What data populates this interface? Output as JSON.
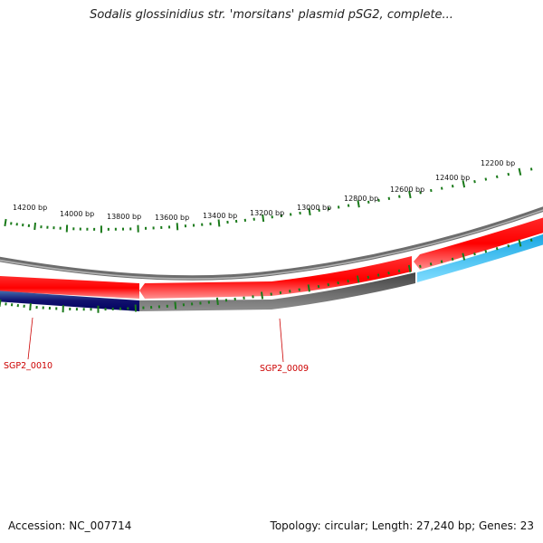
{
  "title": "Sodalis glossinidius str. 'morsitans' plasmid pSG2, complete...",
  "footer": {
    "accession": "Accession: NC_007714",
    "summary": "Topology: circular; Length: 27,240 bp; Genes: 23"
  },
  "scale_labels": [
    "14200 bp",
    "14000 bp",
    "13800 bp",
    "13600 bp",
    "13400 bp",
    "13200 bp",
    "13000 bp",
    "12800 bp",
    "12600 bp",
    "12400 bp",
    "12200 bp"
  ],
  "gene_labels": [
    "SGP2_0010",
    "SGP2_0009"
  ],
  "colors": {
    "forward_cds": "#ff0000",
    "reverse_cds_blue": "#1ab2e8",
    "reverse_cds_navy": "#101070",
    "reverse_cds_gray": "#555555",
    "backbone": "#888888",
    "ticks": "#1a7a1a",
    "gene_label": "#cc0000"
  }
}
